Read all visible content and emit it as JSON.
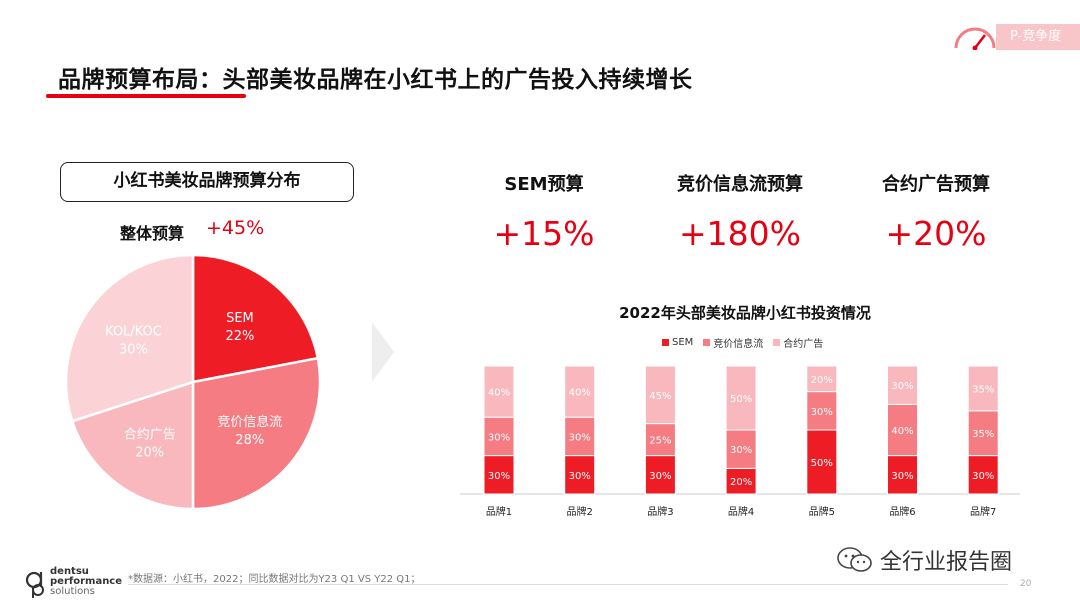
{
  "header": {
    "title": "品牌预算布局：头部美妆品牌在小红书上的广告投入持续增长",
    "tag": "P-竞争度",
    "gauge_icon": "gauge-icon"
  },
  "colors": {
    "accent": "#e60012",
    "sem": "#ee1c25",
    "bidding": "#f47c82",
    "contract": "#f8b8bd",
    "kol": "#fbd3d6"
  },
  "left": {
    "box_title": "小红书美妆品牌预算分布",
    "overall_label": "整体预算",
    "overall_value": "+45%"
  },
  "kpis": [
    {
      "label": "SEM预算",
      "value": "+15%"
    },
    {
      "label": "竞价信息流预算",
      "value": "+180%"
    },
    {
      "label": "合约广告预算",
      "value": "+20%"
    }
  ],
  "chart_data": [
    {
      "type": "pie",
      "title": "",
      "slices": [
        {
          "name": "SEM",
          "value": 22,
          "label": "22%",
          "color": "#ee1c25"
        },
        {
          "name": "竞价信息流",
          "value": 28,
          "label": "28%",
          "color": "#f47c82"
        },
        {
          "name": "合约广告",
          "value": 20,
          "label": "20%",
          "color": "#f8b8bd"
        },
        {
          "name": "KOL/KOC",
          "value": 30,
          "label": "30%",
          "color": "#fbd3d6"
        }
      ]
    },
    {
      "type": "bar",
      "stacked": true,
      "title": "2022年头部美妆品牌小红书投资情况",
      "categories": [
        "品牌1",
        "品牌2",
        "品牌3",
        "品牌4",
        "品牌5",
        "品牌6",
        "品牌7"
      ],
      "series": [
        {
          "name": "SEM",
          "values": [
            30,
            30,
            30,
            20,
            50,
            30,
            30
          ],
          "labels": [
            "30%",
            "30%",
            "30%",
            "20%",
            "50%",
            "30%",
            "30%"
          ],
          "color": "#ee1c25"
        },
        {
          "name": "竞价信息流",
          "values": [
            30,
            30,
            25,
            30,
            30,
            40,
            35
          ],
          "labels": [
            "30%",
            "30%",
            "25%",
            "30%",
            "30%",
            "40%",
            "35%"
          ],
          "color": "#f47c82"
        },
        {
          "name": "合约广告",
          "values": [
            40,
            40,
            45,
            50,
            20,
            30,
            35
          ],
          "labels": [
            "40%",
            "40%",
            "45%",
            "50%",
            "20%",
            "30%",
            "35%"
          ],
          "color": "#f8b8bd"
        }
      ],
      "ylim": [
        0,
        100
      ],
      "legend": "top"
    }
  ],
  "footer": {
    "logo_lines": [
      "dentsu",
      "performance",
      "solutions"
    ],
    "source": "*数据源：小红书，2022；同比数据对比为Y23 Q1 VS Y22 Q1；",
    "page": "20",
    "watermark": "全行业报告圈",
    "watermark_icon": "wechat-icon"
  }
}
